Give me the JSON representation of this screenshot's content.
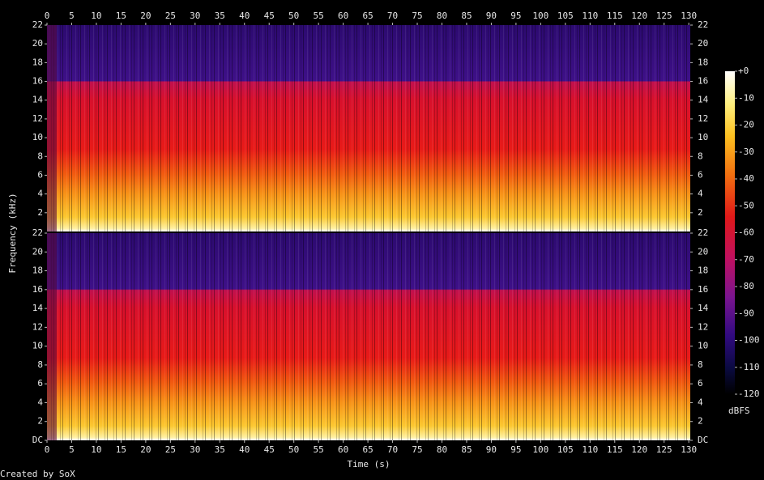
{
  "chart_data": {
    "type": "spectrogram",
    "x_label": "Time (s)",
    "y_label": "Frequency (kHz)",
    "xlim": [
      0,
      130.3
    ],
    "xticks": [
      0,
      5,
      10,
      15,
      20,
      25,
      30,
      35,
      40,
      45,
      50,
      55,
      60,
      65,
      70,
      75,
      80,
      85,
      90,
      95,
      100,
      105,
      110,
      115,
      120,
      125,
      130
    ],
    "channels": [
      {
        "ylim": [
          0,
          22
        ],
        "yticks": [
          2,
          4,
          6,
          8,
          10,
          12,
          14,
          16,
          18,
          20,
          22
        ]
      },
      {
        "ylim": [
          0,
          22
        ],
        "yticks": [
          {
            "value": 0,
            "label": "DC"
          },
          2,
          4,
          6,
          8,
          10,
          12,
          14,
          16,
          18,
          20,
          22
        ]
      }
    ],
    "colorbar": {
      "label": "dBFS",
      "lim": [
        -120,
        0
      ],
      "ticks": [
        {
          "value": 0,
          "label": "+0"
        },
        -10,
        -20,
        -30,
        -40,
        -50,
        -60,
        -70,
        -80,
        -90,
        -100,
        -110,
        -120
      ]
    },
    "footer": "Created by SoX"
  }
}
